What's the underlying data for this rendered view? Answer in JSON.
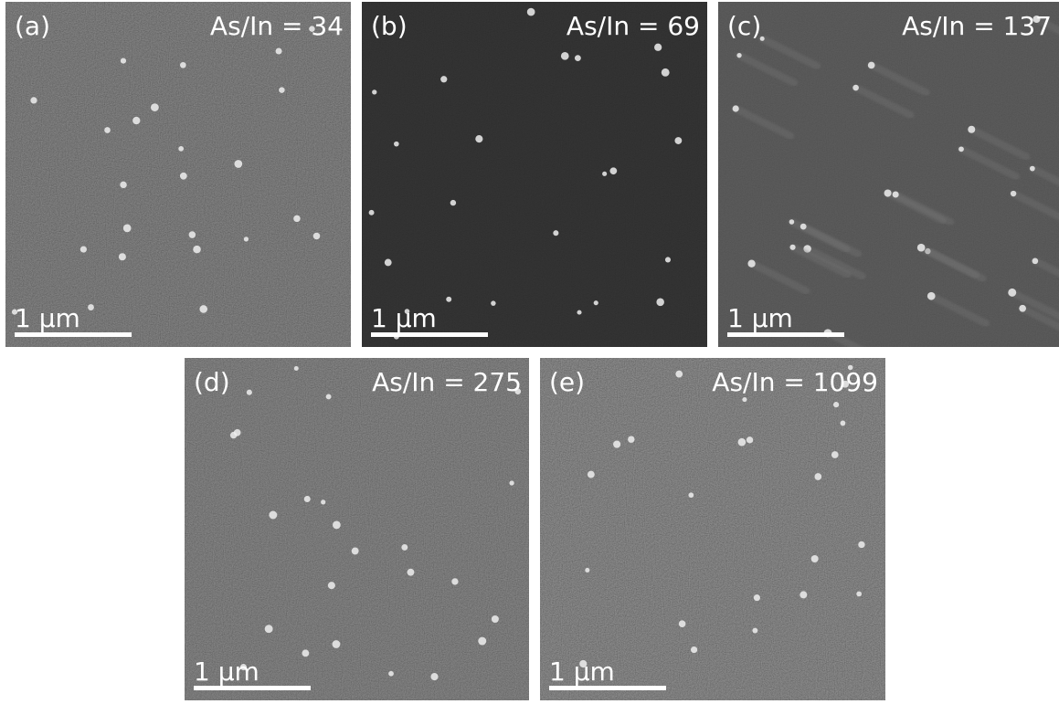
{
  "panels": [
    {
      "label": "(a)",
      "ratio": "As/In = 34",
      "scale": "1 μm"
    },
    {
      "label": "(b)",
      "ratio": "As/In = 69",
      "scale": "1 μm"
    },
    {
      "label": "(c)",
      "ratio": "As/In = 137",
      "scale": "1 μm"
    },
    {
      "label": "(d)",
      "ratio": "As/In = 275",
      "scale": "1 μm"
    },
    {
      "label": "(e)",
      "ratio": "As/In = 1099",
      "scale": "1 μm"
    }
  ]
}
